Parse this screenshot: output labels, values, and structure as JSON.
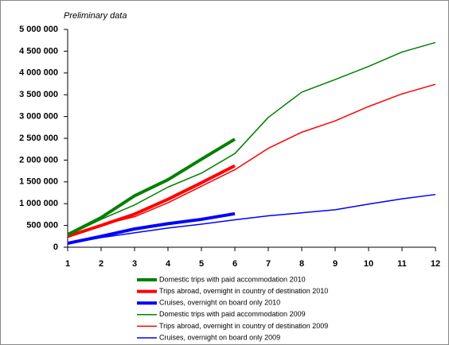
{
  "chart_data": {
    "type": "line",
    "subtitle": "Preliminary data",
    "x": [
      1,
      2,
      3,
      4,
      5,
      6,
      7,
      8,
      9,
      10,
      11,
      12
    ],
    "xlim": [
      1,
      12
    ],
    "xticks": [
      1,
      2,
      3,
      4,
      5,
      6,
      7,
      8,
      9,
      10,
      11,
      12
    ],
    "ylim": [
      0,
      5000000
    ],
    "yticks": [
      0,
      {
        "value": 500000,
        "label": "500 000"
      },
      {
        "value": 1000000,
        "label": "1 000 000"
      },
      {
        "value": 1500000,
        "label": "1 500 000"
      },
      {
        "value": 2000000,
        "label": "2 000 000"
      },
      {
        "value": 2500000,
        "label": "2 500 000"
      },
      {
        "value": 3000000,
        "label": "3 000 000"
      },
      {
        "value": 3500000,
        "label": "3 500 000"
      },
      {
        "value": 4000000,
        "label": "4 000 000"
      },
      {
        "value": 4500000,
        "label": "4 500 000"
      },
      {
        "value": 5000000,
        "label": "5 000 000"
      }
    ],
    "series": [
      {
        "name": "Domestic trips with paid accommodation 2010",
        "color": "#008000",
        "width": 4,
        "values": [
          290000,
          680000,
          1180000,
          1550000,
          2020000,
          2480000,
          null,
          null,
          null,
          null,
          null,
          null
        ]
      },
      {
        "name": "Trips abroad, overnight in country of destination 2010",
        "color": "#ff0000",
        "width": 4,
        "values": [
          250000,
          500000,
          760000,
          1100000,
          1480000,
          1870000,
          null,
          null,
          null,
          null,
          null,
          null
        ]
      },
      {
        "name": "Cruises, overnight on board only 2010",
        "color": "#0000ff",
        "width": 4,
        "values": [
          90000,
          250000,
          420000,
          540000,
          640000,
          770000,
          null,
          null,
          null,
          null,
          null,
          null
        ]
      },
      {
        "name": "Domestic trips with paid accommodation 2009",
        "color": "#008000",
        "width": 1.5,
        "values": [
          270000,
          640000,
          970000,
          1380000,
          1700000,
          2150000,
          2980000,
          3560000,
          3850000,
          4150000,
          4480000,
          4700000
        ]
      },
      {
        "name": "Trips abroad, overnight in country of destination 2009",
        "color": "#ff0000",
        "width": 1.5,
        "values": [
          250000,
          510000,
          700000,
          1020000,
          1400000,
          1780000,
          2270000,
          2640000,
          2900000,
          3230000,
          3520000,
          3740000
        ]
      },
      {
        "name": "Cruises, overnight on board only 2009",
        "color": "#0000ff",
        "width": 1.5,
        "values": [
          80000,
          220000,
          330000,
          440000,
          530000,
          630000,
          720000,
          790000,
          860000,
          990000,
          1110000,
          1210000
        ]
      }
    ]
  }
}
